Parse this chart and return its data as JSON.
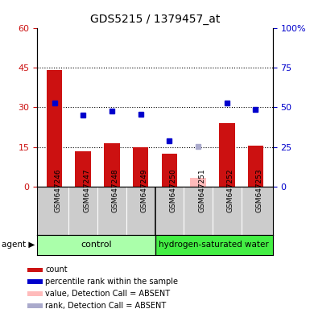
{
  "title": "GDS5215 / 1379457_at",
  "samples": [
    "GSM647246",
    "GSM647247",
    "GSM647248",
    "GSM647249",
    "GSM647250",
    "GSM647251",
    "GSM647252",
    "GSM647253"
  ],
  "count_values": [
    44.0,
    13.5,
    16.5,
    15.0,
    12.5,
    null,
    24.0,
    15.5
  ],
  "rank_values_pct": [
    53.0,
    45.0,
    47.5,
    45.5,
    29.0,
    null,
    52.5,
    48.5
  ],
  "absent_count": [
    null,
    null,
    null,
    null,
    null,
    3.5,
    null,
    null
  ],
  "absent_rank_pct": [
    null,
    null,
    null,
    null,
    null,
    25.5,
    null,
    null
  ],
  "ylim_left": [
    0,
    60
  ],
  "ylim_right": [
    0,
    100
  ],
  "yticks_left": [
    0,
    15,
    30,
    45,
    60
  ],
  "ytick_labels_left": [
    "0",
    "15",
    "30",
    "45",
    "60"
  ],
  "yticks_right": [
    0,
    25,
    50,
    75,
    100
  ],
  "ytick_labels_right": [
    "0",
    "25",
    "50",
    "75",
    "100%"
  ],
  "hlines": [
    15,
    30,
    45
  ],
  "bar_color": "#cc1111",
  "rank_color": "#0000cc",
  "absent_bar_color": "#ffbbbb",
  "absent_rank_color": "#aaaacc",
  "control_bg": "#aaffaa",
  "treatment_bg": "#44ee44",
  "xlabel_area_bg": "#cccccc",
  "n_control": 4,
  "legend_items": [
    {
      "color": "#cc1111",
      "label": "count",
      "marker": "square"
    },
    {
      "color": "#0000cc",
      "label": "percentile rank within the sample",
      "marker": "square"
    },
    {
      "color": "#ffbbbb",
      "label": "value, Detection Call = ABSENT",
      "marker": "square"
    },
    {
      "color": "#aaaacc",
      "label": "rank, Detection Call = ABSENT",
      "marker": "square"
    }
  ]
}
